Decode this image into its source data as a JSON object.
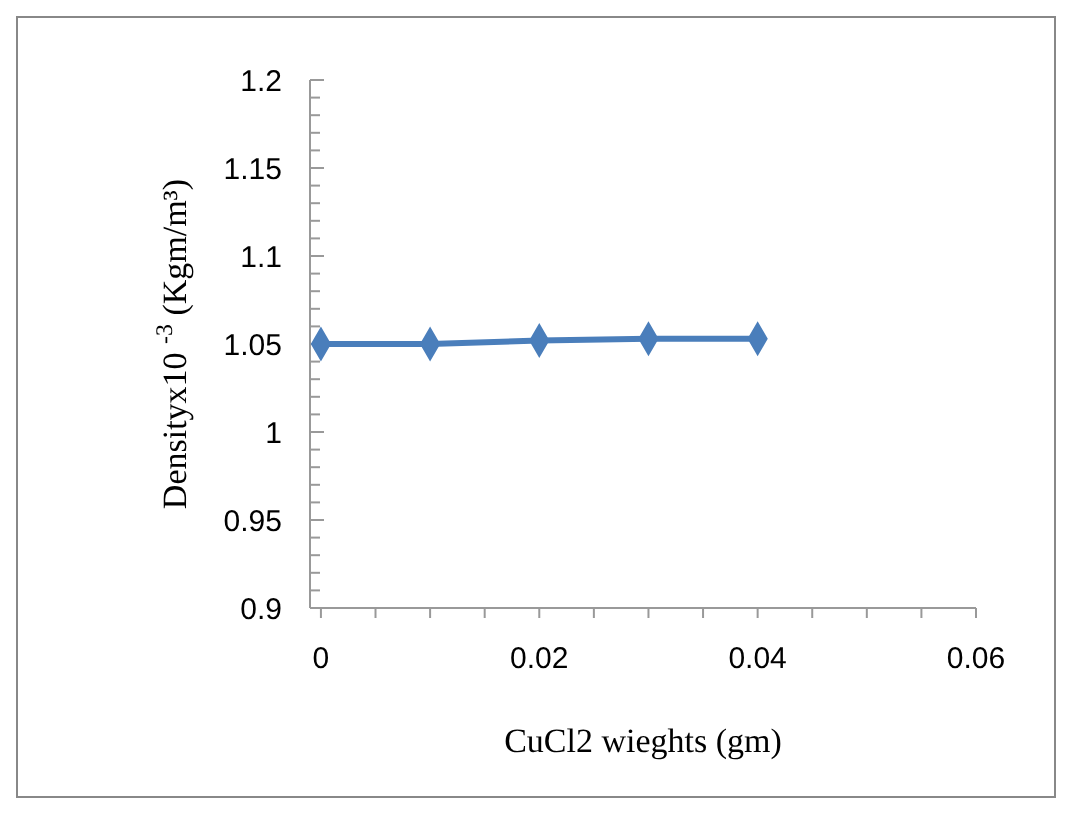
{
  "chart_data": {
    "type": "line",
    "xlabel": "CuCl2 wieghts (gm)",
    "ylabel": "Densityx10 $^{-3}$ (Kgm/m³)",
    "x": [
      0,
      0.01,
      0.02,
      0.03,
      0.04
    ],
    "series": [
      {
        "color": "#4a7ebb",
        "values": [
          1.05,
          1.05,
          1.052,
          1.053,
          1.053
        ]
      }
    ],
    "xlim": [
      -0.001,
      0.06
    ],
    "xticks": [
      0,
      {
        "value": 0.005,
        "label": null
      },
      {
        "value": 0.01,
        "label": null
      },
      {
        "value": 0.015,
        "label": null
      },
      0.02,
      {
        "value": 0.025,
        "label": null
      },
      {
        "value": 0.03,
        "label": null
      },
      {
        "value": 0.035,
        "label": null
      },
      0.04,
      {
        "value": 0.045,
        "label": null
      },
      {
        "value": 0.05,
        "label": null
      },
      {
        "value": 0.055,
        "label": null
      },
      0.06
    ],
    "ylim": [
      0.9,
      1.2
    ],
    "yticks": [
      0.9,
      {
        "value": 0.91,
        "label": null
      },
      {
        "value": 0.92,
        "label": null
      },
      {
        "value": 0.93,
        "label": null
      },
      {
        "value": 0.94,
        "label": null
      },
      0.95,
      {
        "value": 0.96,
        "label": null
      },
      {
        "value": 0.97,
        "label": null
      },
      {
        "value": 0.98,
        "label": null
      },
      {
        "value": 0.99,
        "label": null
      },
      1,
      {
        "value": 1.01,
        "label": null
      },
      {
        "value": 1.02,
        "label": null
      },
      {
        "value": 1.03,
        "label": null
      },
      {
        "value": 1.04,
        "label": null
      },
      1.05,
      {
        "value": 1.06,
        "label": null
      },
      {
        "value": 1.07,
        "label": null
      },
      {
        "value": 1.08,
        "label": null
      },
      {
        "value": 1.09,
        "label": null
      },
      1.1,
      {
        "value": 1.11,
        "label": null
      },
      {
        "value": 1.12,
        "label": null
      },
      {
        "value": 1.13,
        "label": null
      },
      {
        "value": 1.14,
        "label": null
      },
      1.15,
      {
        "value": 1.16,
        "label": null
      },
      {
        "value": 1.17,
        "label": null
      },
      {
        "value": 1.18,
        "label": null
      },
      {
        "value": 1.19,
        "label": null
      },
      1.2
    ],
    "grid": false,
    "marker": "diamond",
    "line_style": "solid"
  }
}
